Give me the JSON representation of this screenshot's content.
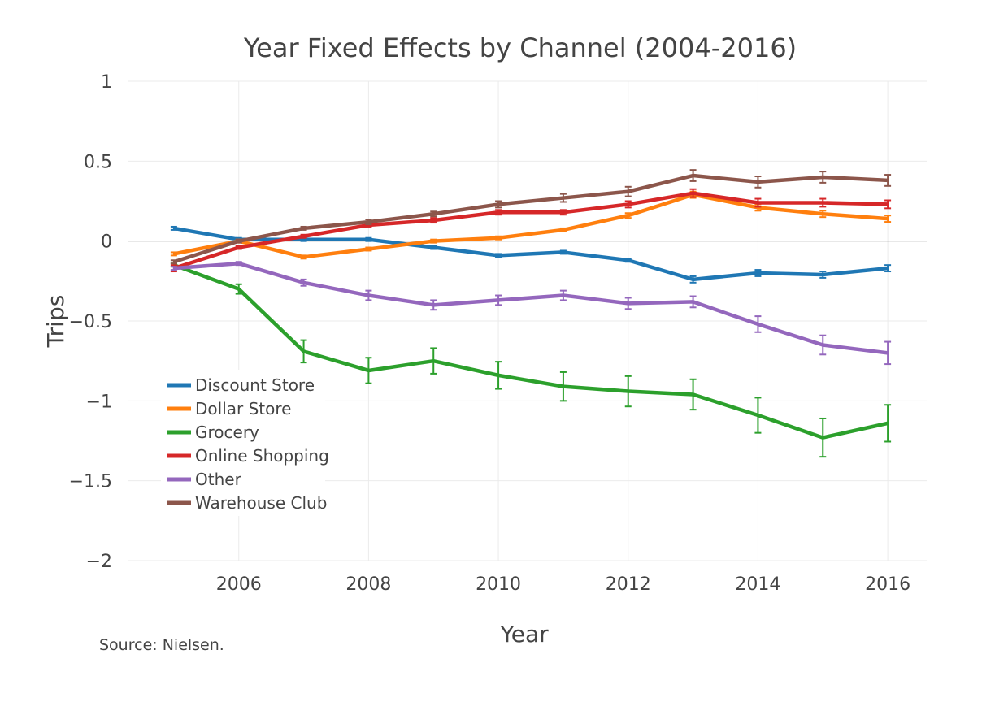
{
  "chart_data": {
    "type": "line",
    "title": "Year Fixed Effects by Channel (2004-2016)",
    "xlabel": "Year",
    "ylabel": "Trips",
    "source_note": "Source: Nielsen.",
    "x": [
      2005,
      2006,
      2007,
      2008,
      2009,
      2010,
      2011,
      2012,
      2013,
      2014,
      2015,
      2016
    ],
    "xlim": [
      2004.3,
      2016.6
    ],
    "ylim": [
      -2,
      1
    ],
    "x_ticks": [
      2006,
      2008,
      2010,
      2012,
      2014,
      2016
    ],
    "x_tick_labels": [
      "2006",
      "2008",
      "2010",
      "2012",
      "2014",
      "2016"
    ],
    "y_ticks": [
      1,
      0.5,
      0,
      -0.5,
      -1,
      -1.5,
      -2
    ],
    "y_tick_labels": [
      "1",
      "0.5",
      "0",
      "−0.5",
      "−1",
      "−1.5",
      "−2"
    ],
    "grid": true,
    "legend_position": "bottom-left",
    "series": [
      {
        "name": "Discount Store",
        "color": "#1f77b4",
        "values": [
          0.08,
          0.01,
          0.01,
          0.01,
          -0.04,
          -0.09,
          -0.07,
          -0.12,
          -0.24,
          -0.2,
          -0.21,
          -0.17
        ],
        "errors": [
          0.01,
          0.01,
          0.01,
          0.01,
          0.01,
          0.01,
          0.01,
          0.01,
          0.02,
          0.02,
          0.02,
          0.02
        ]
      },
      {
        "name": "Dollar Store",
        "color": "#ff7f0e",
        "values": [
          -0.08,
          0.0,
          -0.1,
          -0.05,
          0.0,
          0.02,
          0.07,
          0.16,
          0.29,
          0.21,
          0.17,
          0.14
        ],
        "errors": [
          0.01,
          0.01,
          0.01,
          0.01,
          0.01,
          0.01,
          0.01,
          0.015,
          0.02,
          0.02,
          0.02,
          0.02
        ]
      },
      {
        "name": "Grocery",
        "color": "#2ca02c",
        "values": [
          -0.15,
          -0.3,
          -0.69,
          -0.81,
          -0.75,
          -0.84,
          -0.91,
          -0.94,
          -0.96,
          -1.09,
          -1.23,
          -1.14
        ],
        "errors": [
          0.01,
          0.03,
          0.07,
          0.08,
          0.08,
          0.085,
          0.09,
          0.095,
          0.095,
          0.11,
          0.12,
          0.115
        ]
      },
      {
        "name": "Online Shopping",
        "color": "#d62728",
        "values": [
          -0.17,
          -0.04,
          0.03,
          0.1,
          0.13,
          0.18,
          0.18,
          0.23,
          0.3,
          0.24,
          0.24,
          0.23
        ],
        "errors": [
          0.02,
          0.01,
          0.01,
          0.01,
          0.015,
          0.015,
          0.015,
          0.02,
          0.025,
          0.025,
          0.025,
          0.025
        ]
      },
      {
        "name": "Other",
        "color": "#9467bd",
        "values": [
          -0.17,
          -0.14,
          -0.26,
          -0.34,
          -0.4,
          -0.37,
          -0.34,
          -0.39,
          -0.38,
          -0.52,
          -0.65,
          -0.7
        ],
        "errors": [
          0.01,
          0.01,
          0.02,
          0.03,
          0.03,
          0.03,
          0.03,
          0.035,
          0.035,
          0.05,
          0.06,
          0.07
        ]
      },
      {
        "name": "Warehouse Club",
        "color": "#8c564b",
        "values": [
          -0.13,
          0.0,
          0.08,
          0.12,
          0.17,
          0.23,
          0.27,
          0.31,
          0.41,
          0.37,
          0.4,
          0.38
        ],
        "errors": [
          0.01,
          0.01,
          0.01,
          0.015,
          0.015,
          0.02,
          0.025,
          0.03,
          0.035,
          0.035,
          0.035,
          0.035
        ]
      }
    ]
  }
}
